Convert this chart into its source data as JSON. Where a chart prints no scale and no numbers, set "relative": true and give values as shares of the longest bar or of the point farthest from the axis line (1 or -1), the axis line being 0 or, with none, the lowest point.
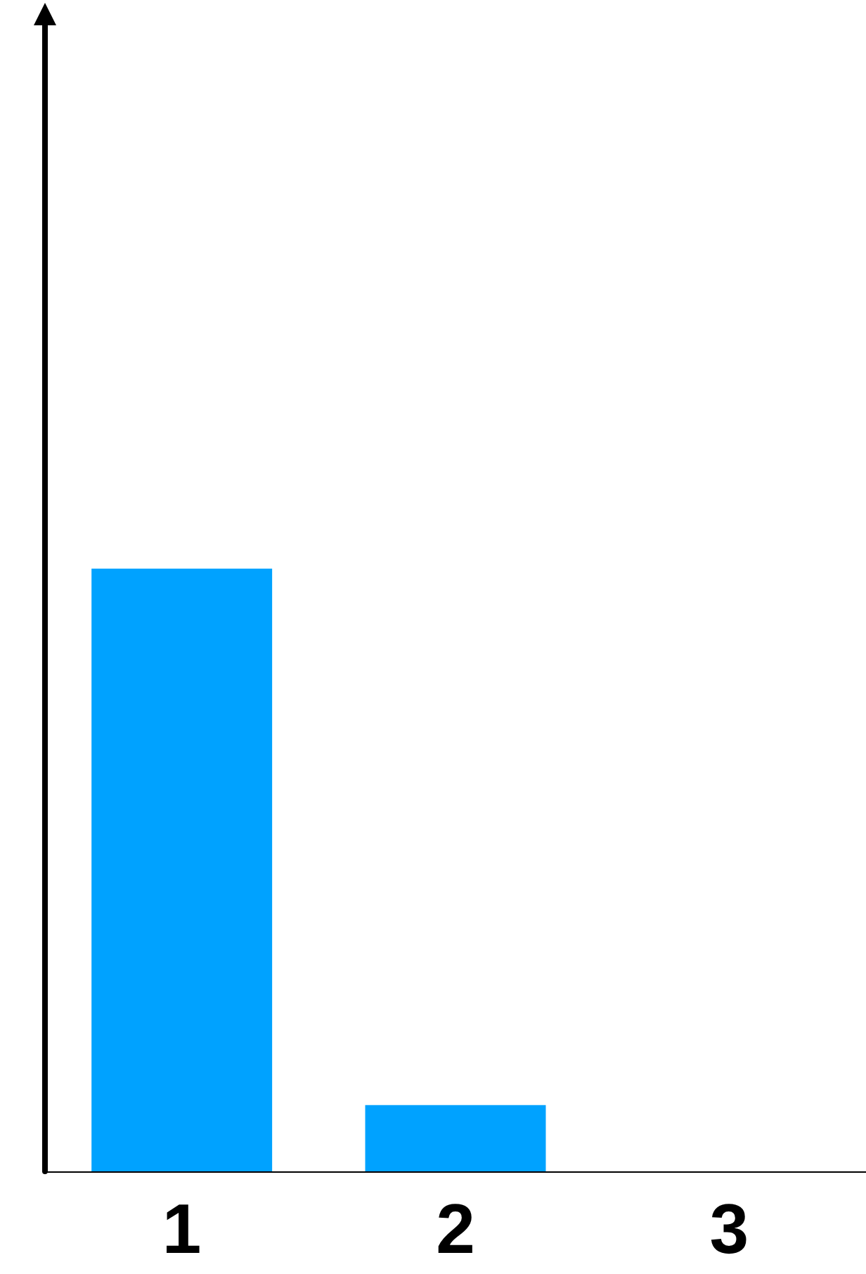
{
  "chart_data": {
    "type": "bar",
    "relative": true,
    "categories": [
      "1",
      "2",
      "3"
    ],
    "values": [
      1,
      0.11,
      null
    ],
    "color": "#00a2ff"
  }
}
